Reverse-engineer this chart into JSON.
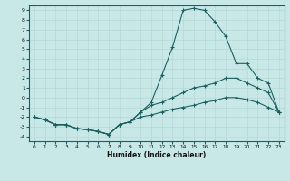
{
  "xlabel": "Humidex (Indice chaleur)",
  "bg_color": "#c8e8e8",
  "line_color": "#1a6060",
  "grid_color": "#b8d8d8",
  "xlim": [
    -0.5,
    23.5
  ],
  "ylim": [
    -4.5,
    9.5
  ],
  "yticks": [
    -4,
    -3,
    -2,
    -1,
    0,
    1,
    2,
    3,
    4,
    5,
    6,
    7,
    8,
    9
  ],
  "xticks": [
    0,
    1,
    2,
    3,
    4,
    5,
    6,
    7,
    8,
    9,
    10,
    11,
    12,
    13,
    14,
    15,
    16,
    17,
    18,
    19,
    20,
    21,
    22,
    23
  ],
  "line1_x": [
    0,
    1,
    2,
    3,
    4,
    5,
    6,
    7,
    8,
    9,
    10,
    11,
    12,
    13,
    14,
    15,
    16,
    17,
    18,
    19,
    20,
    21,
    22,
    23
  ],
  "line1_y": [
    -2.0,
    -2.3,
    -2.8,
    -2.8,
    -3.2,
    -3.3,
    -3.5,
    -3.8,
    -2.8,
    -2.5,
    -1.5,
    -0.5,
    2.3,
    5.2,
    9.0,
    9.2,
    9.0,
    7.8,
    6.3,
    3.5,
    3.5,
    2.0,
    1.5,
    -1.5
  ],
  "line2_x": [
    0,
    1,
    2,
    3,
    4,
    5,
    6,
    7,
    8,
    9,
    10,
    11,
    12,
    13,
    14,
    15,
    16,
    17,
    18,
    19,
    20,
    21,
    22,
    23
  ],
  "line2_y": [
    -2.0,
    -2.3,
    -2.8,
    -2.8,
    -3.2,
    -3.3,
    -3.5,
    -3.8,
    -2.8,
    -2.5,
    -1.5,
    -0.8,
    -0.5,
    0.0,
    0.5,
    1.0,
    1.2,
    1.5,
    2.0,
    2.0,
    1.5,
    1.0,
    0.5,
    -1.5
  ],
  "line3_x": [
    0,
    1,
    2,
    3,
    4,
    5,
    6,
    7,
    8,
    9,
    10,
    11,
    12,
    13,
    14,
    15,
    16,
    17,
    18,
    19,
    20,
    21,
    22,
    23
  ],
  "line3_y": [
    -2.0,
    -2.3,
    -2.8,
    -2.8,
    -3.2,
    -3.3,
    -3.5,
    -3.8,
    -2.8,
    -2.5,
    -2.0,
    -1.8,
    -1.5,
    -1.2,
    -1.0,
    -0.8,
    -0.5,
    -0.3,
    0.0,
    0.0,
    -0.2,
    -0.5,
    -1.0,
    -1.5
  ]
}
